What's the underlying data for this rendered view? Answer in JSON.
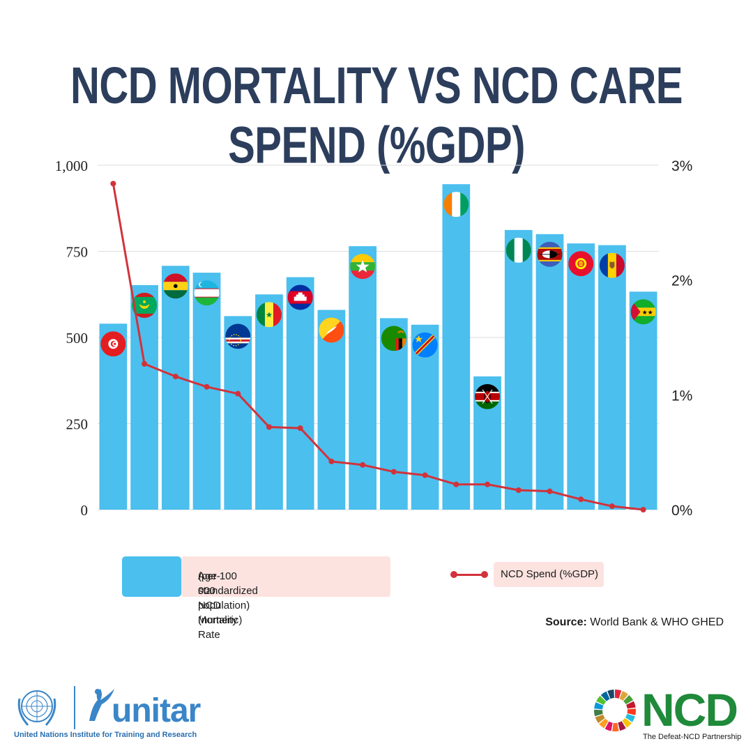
{
  "title": "NCD MORTALITY VS NCD CARE SPEND (%GDP)",
  "chart_data": {
    "type": "bar",
    "title": "NCD MORTALITY VS NCD CARE SPEND (%GDP)",
    "categories": [
      "Tunisia",
      "Mauritania",
      "Ghana",
      "Uzbekistan",
      "Cabo Verde",
      "Senegal",
      "Cambodia",
      "Bhutan",
      "Myanmar",
      "Zambia",
      "DR Congo",
      "Côte d'Ivoire",
      "Kenya",
      "Nigeria",
      "Eswatini",
      "Kyrgyzstan",
      "Moldova",
      "São Tomé and Príncipe"
    ],
    "series": [
      {
        "name": "Age-standardized NCD Mortality Rate (per 100 000 population) (numeric)",
        "type": "bar",
        "axis": "left",
        "color": "#4bbfee",
        "values": [
          540,
          652,
          708,
          688,
          562,
          625,
          675,
          580,
          765,
          556,
          537,
          945,
          387,
          812,
          800,
          773,
          768,
          633
        ]
      },
      {
        "name": "NCD Spend (%GDP)",
        "type": "line",
        "axis": "right",
        "color": "#d2323a",
        "values": [
          2.84,
          1.27,
          1.16,
          1.07,
          1.01,
          0.72,
          0.71,
          0.42,
          0.39,
          0.33,
          0.3,
          0.22,
          0.22,
          0.17,
          0.16,
          0.09,
          0.03,
          0.0
        ]
      }
    ],
    "left_axis": {
      "ylim": [
        0,
        1000
      ],
      "ticks": [
        "0",
        "250",
        "500",
        "750",
        "1,000"
      ],
      "tick_values": [
        0,
        250,
        500,
        750,
        1000
      ]
    },
    "right_axis": {
      "ylim": [
        0,
        3
      ],
      "ticks": [
        "0%",
        "1%",
        "2%",
        "3%"
      ],
      "tick_values": [
        0,
        1,
        2,
        3
      ]
    },
    "grid": true,
    "legend_position": "bottom"
  },
  "legend": {
    "mortality_line1": "Age-standardized NCD Mortality Rate",
    "mortality_line2": "(per 100 000 population) (numeric)",
    "spend": "NCD Spend (%GDP)"
  },
  "source": {
    "label": "Source:",
    "text": "World Bank & WHO GHED"
  },
  "logos": {
    "unitar_word": "unitar",
    "unitar_sub": "United Nations Institute for Training and Research",
    "ncd_word": "NCD",
    "ncd_sub": "The Defeat-NCD Partnership"
  },
  "colors": {
    "title": "#2c3e5c",
    "bar": "#4bbfee",
    "line": "#d2323a",
    "legend_bg": "#fce3e0",
    "grid": "#dddddd"
  },
  "icons": [
    "flag-tunisia-icon",
    "flag-mauritania-icon",
    "flag-ghana-icon",
    "flag-uzbekistan-icon",
    "flag-cabo-verde-icon",
    "flag-senegal-icon",
    "flag-cambodia-icon",
    "flag-bhutan-icon",
    "flag-myanmar-icon",
    "flag-zambia-icon",
    "flag-dr-congo-icon",
    "flag-cote-divoire-icon",
    "flag-kenya-icon",
    "flag-nigeria-icon",
    "flag-eswatini-icon",
    "flag-kyrgyzstan-icon",
    "flag-moldova-icon",
    "flag-sao-tome-icon"
  ]
}
